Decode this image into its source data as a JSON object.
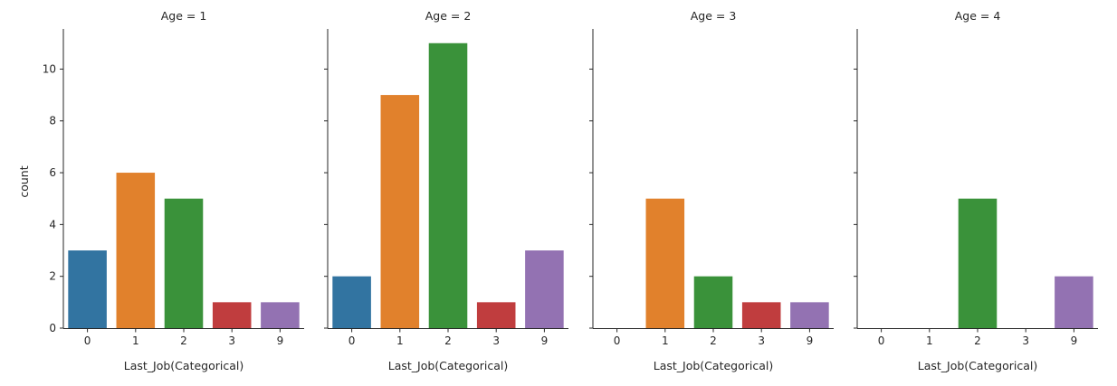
{
  "chart_data": {
    "type": "bar",
    "layout": "facet-columns",
    "ylabel": "count",
    "xlabel": "Last_Job(Categorical)",
    "categories": [
      "0",
      "1",
      "2",
      "3",
      "9"
    ],
    "ylim": [
      0,
      11.55
    ],
    "yticks": [
      0,
      2,
      4,
      6,
      8,
      10
    ],
    "colors": [
      "#3274a1",
      "#e1812c",
      "#3a923a",
      "#c03d3e",
      "#9372b2"
    ],
    "grid": false,
    "panels": [
      {
        "title": "Age = 1",
        "values": [
          3,
          6,
          5,
          1,
          1
        ]
      },
      {
        "title": "Age = 2",
        "values": [
          2,
          9,
          11,
          1,
          3
        ]
      },
      {
        "title": "Age = 3",
        "values": [
          0,
          5,
          2,
          1,
          1
        ]
      },
      {
        "title": "Age = 4",
        "values": [
          0,
          0,
          5,
          0,
          2
        ]
      }
    ]
  }
}
